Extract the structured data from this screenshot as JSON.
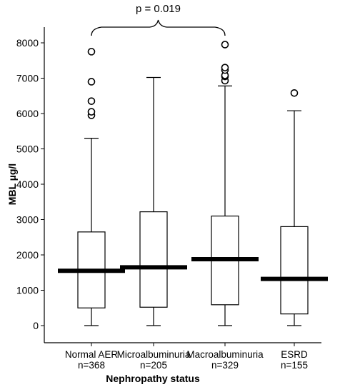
{
  "chart_data": {
    "type": "box",
    "xlabel": "Nephropathy status",
    "ylabel_text": "MBL ",
    "ylabel_unit": "µg/l",
    "ylim": [
      0,
      8000
    ],
    "yticks": [
      0,
      1000,
      2000,
      3000,
      4000,
      5000,
      6000,
      7000,
      8000
    ],
    "groups": [
      {
        "label": "Normal AER",
        "n": "n=368",
        "min": 0,
        "q1": 500,
        "median": 1550,
        "q3": 2650,
        "max": 5300,
        "outliers": [
          5950,
          6050,
          6350,
          6900,
          7750
        ]
      },
      {
        "label": "Microalbuminuria",
        "n": "n=205",
        "min": 0,
        "q1": 520,
        "median": 1650,
        "q3": 3220,
        "max": 7020,
        "outliers": []
      },
      {
        "label": "Macroalbuminuria",
        "n": "n=329",
        "min": 0,
        "q1": 590,
        "median": 1880,
        "q3": 3100,
        "max": 6780,
        "outliers": [
          6930,
          7050,
          7080,
          7230,
          7300,
          7950
        ]
      },
      {
        "label": "ESRD",
        "n": "n=155",
        "min": 0,
        "q1": 330,
        "median": 1320,
        "q3": 2800,
        "max": 6080,
        "outliers": [
          6580
        ]
      }
    ],
    "annotation": {
      "text": "p = 0.019",
      "from_group": 0,
      "to_group": 2
    }
  }
}
